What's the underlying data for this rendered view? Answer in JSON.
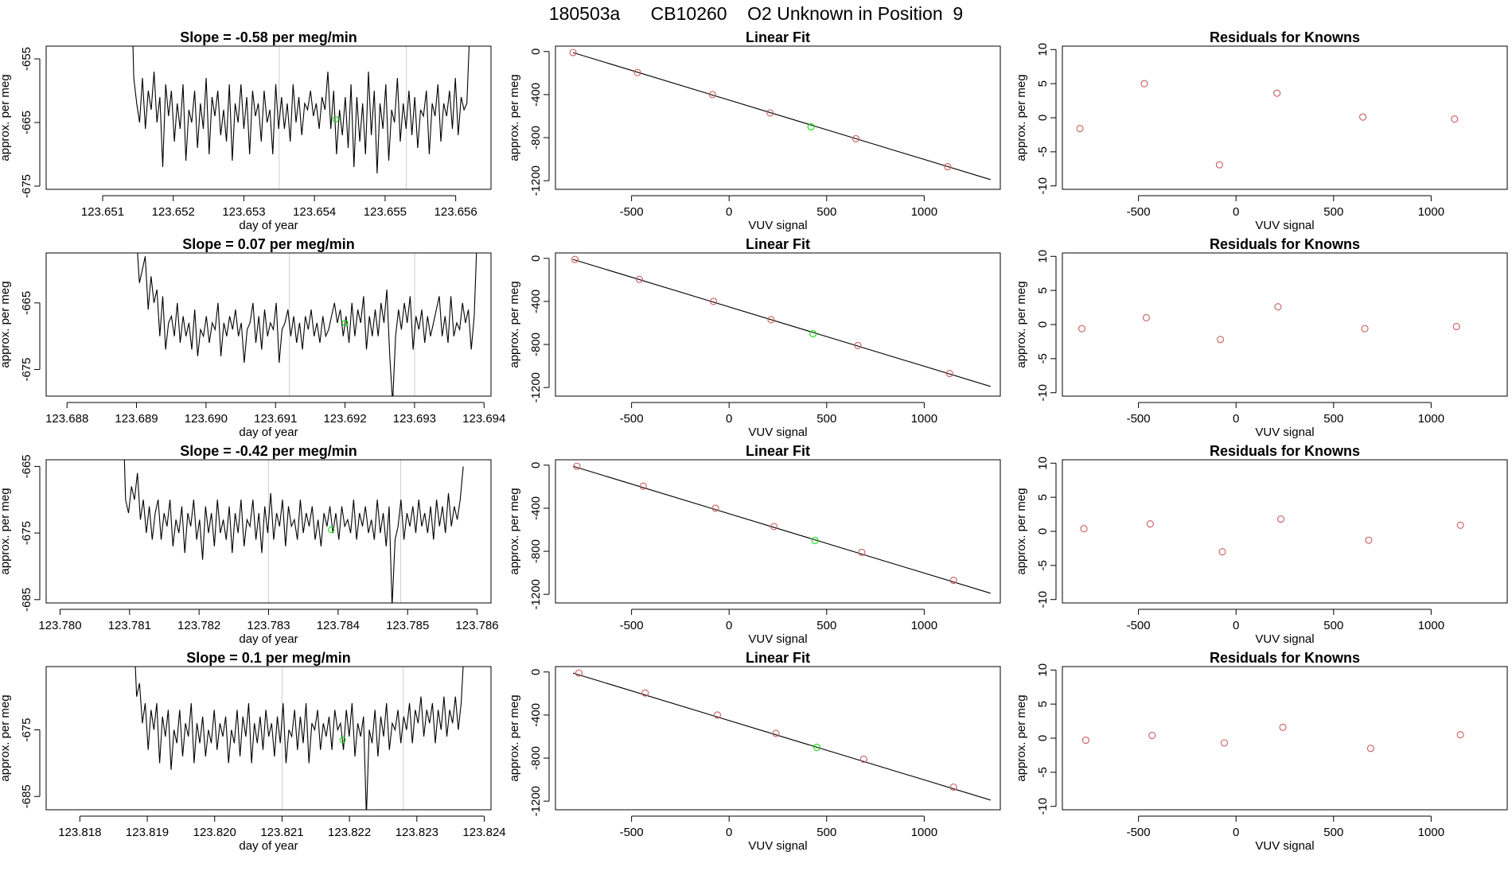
{
  "figure_title": "180503a      CB10260    O2 Unknown in Position  9",
  "colors": {
    "trace": "#000000",
    "known_point": "#cd5c5c",
    "unknown_point": "#00e000",
    "marker_line": "#cfcfcf",
    "axis": "#000000"
  },
  "chart_data": [
    {
      "type": "line",
      "row": 1,
      "title": "Slope =  -0.58  per meg/min",
      "xlabel": "day of year",
      "ylabel": "approx. per meg",
      "xlim": [
        123.6502,
        123.6565
      ],
      "ylim": [
        -675.5,
        -653
      ],
      "xticks": [
        "123.651",
        "123.652",
        "123.653",
        "123.654",
        "123.655",
        "123.656"
      ],
      "yticks": [
        "-655",
        "-665",
        "-675"
      ],
      "markers": [
        123.6535,
        123.6553
      ],
      "x_start": 123.6514,
      "x_end": 123.6562,
      "values": [
        -640,
        -658,
        -662,
        -665,
        -658,
        -666,
        -660,
        -663,
        -657,
        -665,
        -661,
        -672,
        -659,
        -664,
        -660,
        -668,
        -662,
        -666,
        -659,
        -671,
        -663,
        -665,
        -660,
        -669,
        -662,
        -666,
        -658,
        -670,
        -661,
        -664,
        -660,
        -667,
        -663,
        -668,
        -659,
        -671,
        -662,
        -665,
        -659,
        -666,
        -661,
        -670,
        -660,
        -664,
        -662,
        -668,
        -660,
        -665,
        -663,
        -670,
        -659,
        -666,
        -661,
        -666,
        -662,
        -668,
        -659,
        -665,
        -661,
        -667,
        -662,
        -663,
        -660,
        -664,
        -662,
        -666,
        -661,
        -663,
        -657,
        -666,
        -660,
        -670,
        -663,
        -667,
        -661,
        -669,
        -659,
        -672,
        -661,
        -668,
        -662,
        -670,
        -657,
        -667,
        -660,
        -673,
        -662,
        -666,
        -659,
        -671,
        -663,
        -665,
        -658,
        -668,
        -662,
        -666,
        -660,
        -667,
        -661,
        -669,
        -663,
        -664,
        -660,
        -670,
        -662,
        -664,
        -659,
        -668,
        -662,
        -664,
        -660,
        -666,
        -658,
        -667,
        -661,
        -663,
        -662,
        -650
      ],
      "unknown_point": {
        "x": 123.6543,
        "y": -664.5
      }
    },
    {
      "type": "scatter_with_fit",
      "row": 1,
      "title": "Linear Fit",
      "xlabel": "VUV signal",
      "ylabel": "approx. per meg",
      "xlim": [
        -890,
        1390
      ],
      "ylim": [
        -1280,
        50
      ],
      "xticks": [
        -500,
        0,
        500,
        1000
      ],
      "yticks": [
        0,
        -400,
        -800,
        -1200
      ],
      "fit_line": {
        "x": [
          -800,
          1340
        ],
        "y": [
          -10,
          -1190
        ]
      },
      "knowns": {
        "x": [
          -800,
          -470,
          -85,
          210,
          650,
          1120
        ],
        "y": [
          -10,
          -195,
          -400,
          -570,
          -810,
          -1070
        ]
      },
      "unknown": {
        "x": 420,
        "y": -700
      }
    },
    {
      "type": "scatter",
      "row": 1,
      "title": "Residuals for Knowns",
      "xlabel": "VUV signal",
      "ylabel": "approx. per meg",
      "xlim": [
        -890,
        1390
      ],
      "ylim": [
        -10.5,
        10.5
      ],
      "xticks": [
        -500,
        0,
        500,
        1000
      ],
      "yticks": [
        10,
        5,
        0,
        -5,
        -10
      ],
      "x": [
        -800,
        -470,
        -85,
        210,
        650,
        1120
      ],
      "y": [
        -1.6,
        5.0,
        -6.9,
        3.6,
        0.1,
        -0.2
      ]
    },
    {
      "type": "line",
      "row": 2,
      "title": "Slope =  0.07  per meg/min",
      "xlabel": "day of year",
      "ylabel": "approx. per meg",
      "xlim": [
        123.6877,
        123.6941
      ],
      "ylim": [
        -679,
        -657.5
      ],
      "xticks": [
        "123.688",
        "123.689",
        "123.690",
        "123.691",
        "123.692",
        "123.693",
        "123.694"
      ],
      "yticks": [
        "-665",
        "-675"
      ],
      "markers": [
        123.6912,
        123.693
      ],
      "x_start": 123.689,
      "x_end": 123.6939,
      "values": [
        -655,
        -662,
        -660,
        -658,
        -666,
        -661,
        -665,
        -663,
        -670,
        -664,
        -672,
        -668,
        -667,
        -670,
        -665,
        -671,
        -667,
        -670,
        -668,
        -672,
        -666,
        -673,
        -669,
        -670,
        -667,
        -671,
        -668,
        -669,
        -665,
        -673,
        -668,
        -670,
        -667,
        -669,
        -666,
        -670,
        -668,
        -674,
        -669,
        -668,
        -665,
        -671,
        -667,
        -672,
        -666,
        -670,
        -668,
        -669,
        -665,
        -674,
        -669,
        -668,
        -666,
        -670,
        -667,
        -671,
        -668,
        -672,
        -667,
        -669,
        -666,
        -670,
        -668,
        -671,
        -667,
        -670,
        -669,
        -667,
        -665,
        -668,
        -666,
        -670,
        -667,
        -671,
        -665,
        -670,
        -666,
        -668,
        -664,
        -672,
        -667,
        -670,
        -666,
        -670,
        -665,
        -668,
        -663,
        -673,
        -680,
        -670,
        -666,
        -669,
        -665,
        -668,
        -664,
        -672,
        -667,
        -669,
        -666,
        -671,
        -667,
        -670,
        -668,
        -666,
        -664,
        -670,
        -667,
        -671,
        -664,
        -670,
        -668,
        -669,
        -665,
        -668,
        -666,
        -672,
        -667,
        -655
      ],
      "unknown_point": {
        "x": 123.692,
        "y": -668
      }
    },
    {
      "type": "scatter_with_fit",
      "row": 2,
      "title": "Linear Fit",
      "xlabel": "VUV signal",
      "ylabel": "approx. per meg",
      "xlim": [
        -890,
        1390
      ],
      "ylim": [
        -1280,
        50
      ],
      "xticks": [
        -500,
        0,
        500,
        1000
      ],
      "yticks": [
        0,
        -400,
        -800,
        -1200
      ],
      "fit_line": {
        "x": [
          -800,
          1340
        ],
        "y": [
          -10,
          -1190
        ]
      },
      "knowns": {
        "x": [
          -790,
          -460,
          -80,
          215,
          660,
          1130
        ],
        "y": [
          -10,
          -195,
          -400,
          -570,
          -810,
          -1070
        ]
      },
      "unknown": {
        "x": 430,
        "y": -700
      }
    },
    {
      "type": "scatter",
      "row": 2,
      "title": "Residuals for Knowns",
      "xlabel": "VUV signal",
      "ylabel": "approx. per meg",
      "xlim": [
        -890,
        1390
      ],
      "ylim": [
        -10.5,
        10.5
      ],
      "xticks": [
        -500,
        0,
        500,
        1000
      ],
      "yticks": [
        10,
        5,
        0,
        -5,
        -10
      ],
      "x": [
        -790,
        -460,
        -80,
        215,
        660,
        1130
      ],
      "y": [
        -0.6,
        1.0,
        -2.2,
        2.6,
        -0.6,
        -0.3
      ]
    },
    {
      "type": "line",
      "row": 3,
      "title": "Slope =  -0.42  per meg/min",
      "xlabel": "day of year",
      "ylabel": "approx. per meg",
      "xlim": [
        123.7798,
        123.7862
      ],
      "ylim": [
        -685.5,
        -664
      ],
      "xticks": [
        "123.780",
        "123.781",
        "123.782",
        "123.783",
        "123.784",
        "123.785",
        "123.786"
      ],
      "yticks": [
        "-665",
        "-675",
        "-685"
      ],
      "markers": [
        123.783,
        123.7849
      ],
      "x_start": 123.7809,
      "x_end": 123.7858,
      "values": [
        -655,
        -670,
        -672,
        -668,
        -670,
        -666,
        -673,
        -670,
        -675,
        -671,
        -676,
        -672,
        -670,
        -676,
        -672,
        -674,
        -670,
        -677,
        -673,
        -675,
        -671,
        -678,
        -672,
        -674,
        -670,
        -676,
        -673,
        -679,
        -671,
        -675,
        -672,
        -677,
        -670,
        -675,
        -673,
        -676,
        -671,
        -678,
        -672,
        -675,
        -670,
        -677,
        -673,
        -674,
        -670,
        -676,
        -672,
        -678,
        -671,
        -675,
        -669,
        -676,
        -672,
        -674,
        -670,
        -677,
        -671,
        -674,
        -673,
        -676,
        -670,
        -675,
        -672,
        -674,
        -671,
        -676,
        -673,
        -677,
        -672,
        -674,
        -671,
        -675,
        -672,
        -676,
        -671,
        -674,
        -673,
        -675,
        -670,
        -676,
        -672,
        -674,
        -671,
        -675,
        -673,
        -676,
        -670,
        -675,
        -672,
        -677,
        -671,
        -686,
        -676,
        -674,
        -670,
        -676,
        -672,
        -674,
        -671,
        -675,
        -670,
        -674,
        -672,
        -675,
        -671,
        -676,
        -670,
        -674,
        -671,
        -675,
        -669,
        -674,
        -671,
        -673,
        -670,
        -665
      ],
      "unknown_point": {
        "x": 123.7839,
        "y": -674.5
      }
    },
    {
      "type": "scatter_with_fit",
      "row": 3,
      "title": "Linear Fit",
      "xlabel": "VUV signal",
      "ylabel": "approx. per meg",
      "xlim": [
        -890,
        1390
      ],
      "ylim": [
        -1280,
        50
      ],
      "xticks": [
        -500,
        0,
        500,
        1000
      ],
      "yticks": [
        0,
        -400,
        -800,
        -1200
      ],
      "fit_line": {
        "x": [
          -800,
          1340
        ],
        "y": [
          -10,
          -1190
        ]
      },
      "knowns": {
        "x": [
          -780,
          -440,
          -70,
          230,
          680,
          1150
        ],
        "y": [
          -10,
          -195,
          -400,
          -570,
          -810,
          -1070
        ]
      },
      "unknown": {
        "x": 440,
        "y": -700
      }
    },
    {
      "type": "scatter",
      "row": 3,
      "title": "Residuals for Knowns",
      "xlabel": "VUV signal",
      "ylabel": "approx. per meg",
      "xlim": [
        -890,
        1390
      ],
      "ylim": [
        -10.5,
        10.5
      ],
      "xticks": [
        -500,
        0,
        500,
        1000
      ],
      "yticks": [
        10,
        5,
        0,
        -5,
        -10
      ],
      "x": [
        -780,
        -440,
        -70,
        230,
        680,
        1150
      ],
      "y": [
        0.4,
        1.1,
        -3.0,
        1.8,
        -1.3,
        0.9
      ]
    },
    {
      "type": "line",
      "row": 4,
      "title": "Slope =  0.1  per meg/min",
      "xlabel": "day of year",
      "ylabel": "approx. per meg",
      "xlim": [
        123.8175,
        123.8241
      ],
      "ylim": [
        -687,
        -665.5
      ],
      "xticks": [
        "123.818",
        "123.819",
        "123.820",
        "123.821",
        "123.822",
        "123.823",
        "123.824"
      ],
      "yticks": [
        "-675",
        "-685"
      ],
      "markers": [
        123.821,
        123.8228
      ],
      "x_start": 123.8188,
      "x_end": 123.8237,
      "values": [
        -660,
        -670,
        -668,
        -674,
        -671,
        -678,
        -672,
        -675,
        -671,
        -680,
        -673,
        -676,
        -672,
        -681,
        -675,
        -677,
        -672,
        -679,
        -674,
        -676,
        -671,
        -680,
        -674,
        -677,
        -673,
        -679,
        -675,
        -677,
        -672,
        -678,
        -674,
        -676,
        -673,
        -680,
        -675,
        -677,
        -672,
        -679,
        -673,
        -676,
        -671,
        -680,
        -674,
        -677,
        -673,
        -678,
        -672,
        -676,
        -674,
        -679,
        -673,
        -677,
        -671,
        -680,
        -675,
        -676,
        -672,
        -678,
        -673,
        -677,
        -671,
        -680,
        -674,
        -675,
        -672,
        -678,
        -674,
        -676,
        -673,
        -678,
        -672,
        -675,
        -674,
        -678,
        -672,
        -676,
        -671,
        -679,
        -674,
        -676,
        -673,
        -688,
        -675,
        -677,
        -672,
        -679,
        -673,
        -676,
        -671,
        -678,
        -674,
        -675,
        -672,
        -677,
        -673,
        -675,
        -671,
        -677,
        -672,
        -674,
        -670,
        -676,
        -672,
        -674,
        -671,
        -677,
        -672,
        -675,
        -670,
        -676,
        -672,
        -674,
        -670,
        -675,
        -671,
        -663
      ],
      "unknown_point": {
        "x": 123.8219,
        "y": -676.5
      }
    },
    {
      "type": "scatter_with_fit",
      "row": 4,
      "title": "Linear Fit",
      "xlabel": "VUV signal",
      "ylabel": "approx. per meg",
      "xlim": [
        -890,
        1390
      ],
      "ylim": [
        -1280,
        50
      ],
      "xticks": [
        -500,
        0,
        500,
        1000
      ],
      "yticks": [
        0,
        -400,
        -800,
        -1200
      ],
      "fit_line": {
        "x": [
          -800,
          1340
        ],
        "y": [
          -10,
          -1190
        ]
      },
      "knowns": {
        "x": [
          -770,
          -430,
          -60,
          240,
          690,
          1150
        ],
        "y": [
          -10,
          -195,
          -400,
          -570,
          -810,
          -1070
        ]
      },
      "unknown": {
        "x": 450,
        "y": -700
      }
    },
    {
      "type": "scatter",
      "row": 4,
      "title": "Residuals for Knowns",
      "xlabel": "VUV signal",
      "ylabel": "approx. per meg",
      "xlim": [
        -890,
        1390
      ],
      "ylim": [
        -10.5,
        10.5
      ],
      "xticks": [
        -500,
        0,
        500,
        1000
      ],
      "yticks": [
        10,
        5,
        0,
        -5,
        -10
      ],
      "x": [
        -770,
        -430,
        -60,
        240,
        690,
        1150
      ],
      "y": [
        -0.3,
        0.4,
        -0.7,
        1.6,
        -1.5,
        0.5
      ]
    }
  ]
}
